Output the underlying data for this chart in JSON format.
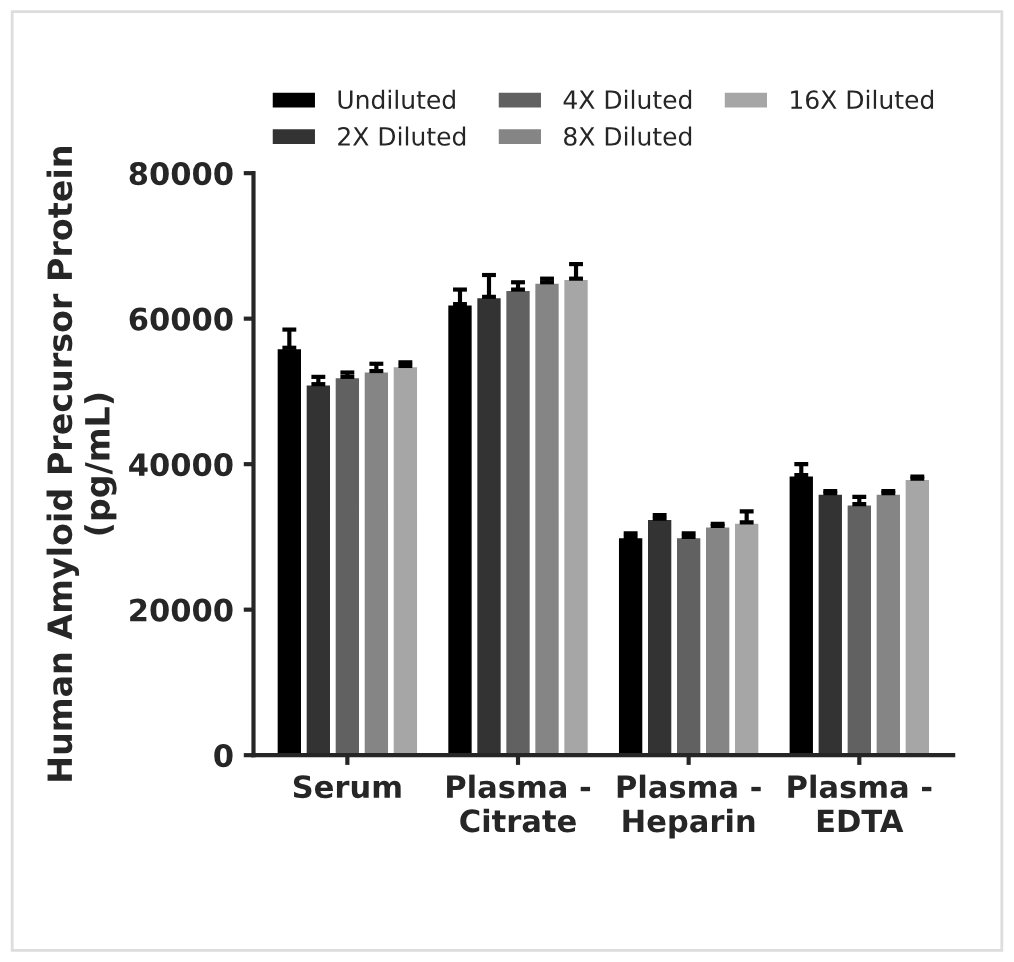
{
  "chart_data": {
    "type": "bar",
    "ylabel": "Human Amyloid Precursor Protein\n(pg/mL)",
    "categories": [
      "Serum",
      "Plasma -\nCitrate",
      "Plasma -\nHeparin",
      "Plasma -\nEDTA"
    ],
    "series": [
      {
        "name": "Undiluted",
        "color": "#000000",
        "values": [
          56000,
          62000,
          30000,
          38500
        ],
        "errors": [
          [
            56000,
            58500
          ],
          [
            62000,
            64000
          ],
          [
            30000,
            30500
          ],
          [
            38500,
            40000
          ]
        ]
      },
      {
        "name": "2X Diluted",
        "color": "#333333",
        "values": [
          51000,
          63000,
          32500,
          36000
        ],
        "errors": [
          [
            51000,
            52000
          ],
          [
            63000,
            66000
          ],
          [
            32500,
            33000
          ],
          [
            36000,
            36300
          ]
        ]
      },
      {
        "name": "4X Diluted",
        "color": "#616161",
        "values": [
          52000,
          64000,
          30000,
          34500
        ],
        "errors": [
          [
            52000,
            52600
          ],
          [
            64000,
            65000
          ],
          [
            30000,
            30500
          ],
          [
            34500,
            35500
          ]
        ]
      },
      {
        "name": "8X Diluted",
        "color": "#858585",
        "values": [
          52800,
          65000,
          31500,
          36000
        ],
        "errors": [
          [
            52800,
            53800
          ],
          [
            65000,
            65500
          ],
          [
            31500,
            31800
          ],
          [
            36000,
            36300
          ]
        ]
      },
      {
        "name": "16X Diluted",
        "color": "#a6a6a6",
        "values": [
          53500,
          65500,
          32000,
          38000
        ],
        "errors": [
          [
            53500,
            54000
          ],
          [
            65500,
            67500
          ],
          [
            32000,
            33500
          ],
          [
            38000,
            38300
          ]
        ]
      }
    ],
    "ylim": [
      0,
      80000
    ],
    "yticks": [
      0,
      20000,
      40000,
      60000,
      80000
    ],
    "grid": false,
    "legend": "top"
  }
}
